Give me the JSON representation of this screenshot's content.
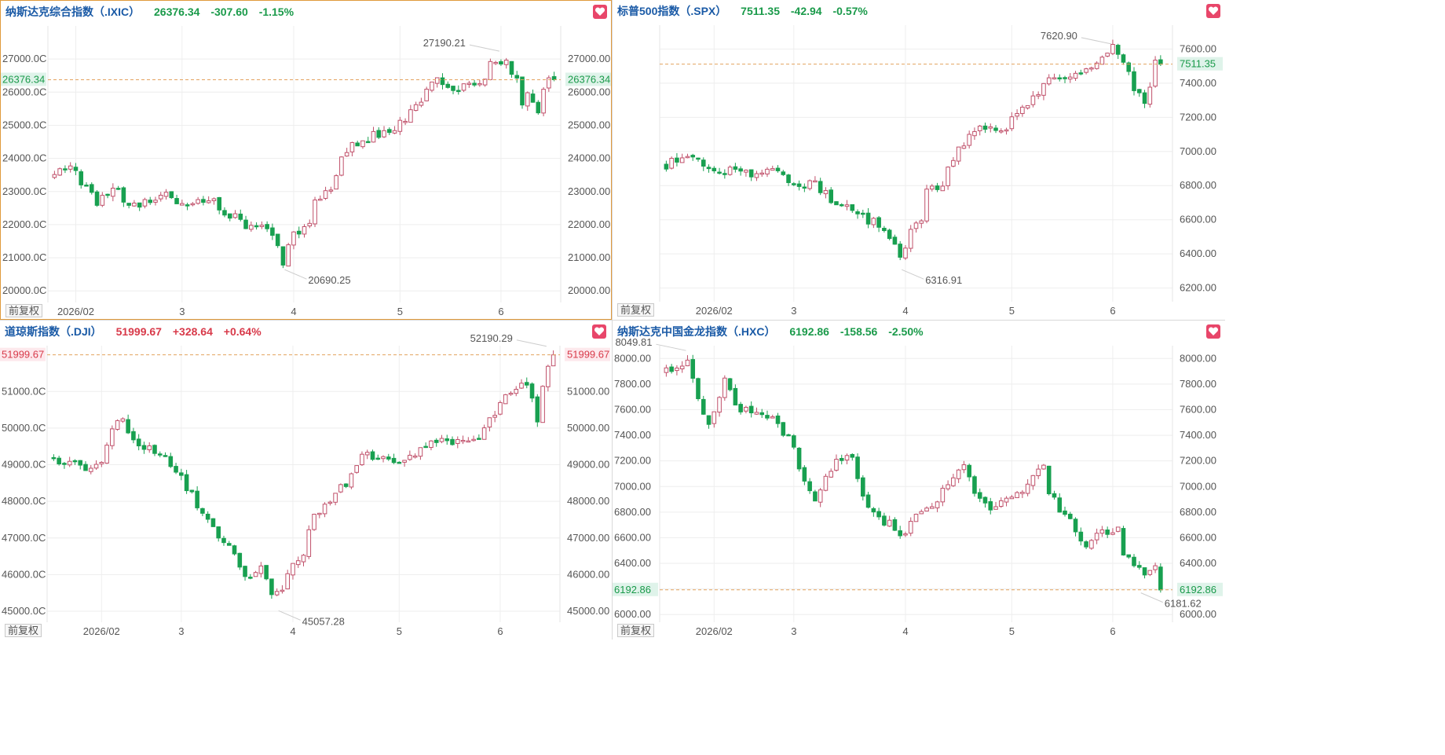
{
  "toolbar": {
    "adj_label": "前复权"
  },
  "colors": {
    "up": "#c0506a",
    "down": "#18a050",
    "last_line": "#e3a25e",
    "grid": "#eeeeee",
    "name": "#1a5aa6",
    "up_text": "#d83a4a",
    "down_text": "#1a9a4a"
  },
  "chart_data": [
    {
      "type": "candlestick",
      "name": "纳斯达克综合指数（.IXIC）",
      "last": "26376.34",
      "change": "-307.60",
      "pct": "-1.15%",
      "direction": "down",
      "yticks": [
        20000,
        21000,
        22000,
        23000,
        24000,
        25000,
        26000,
        27000
      ],
      "ytick_labels_left": [
        "20000.0C",
        "21000.0C",
        "22000.0C",
        "23000.0C",
        "24000.0C",
        "25000.0C",
        "26000.0C",
        "27000.0C"
      ],
      "ytick_labels_right": [
        "20000.00",
        "21000.00",
        "22000.00",
        "23000.00",
        "24000.00",
        "25000.00",
        "26000.00",
        "27000.00"
      ],
      "ylim": [
        19650,
        28000
      ],
      "last_label": "26376.34",
      "xticks": [
        {
          "label": "2026/02",
          "i": 4
        },
        {
          "label": "3",
          "i": 24
        },
        {
          "label": "4",
          "i": 45
        },
        {
          "label": "5",
          "i": 65
        },
        {
          "label": "6",
          "i": 84
        }
      ],
      "annotations": [
        {
          "text": "27190.21",
          "type": "high",
          "i": 84
        },
        {
          "text": "20690.25",
          "type": "low",
          "i": 43
        }
      ],
      "anchors": [
        [
          0,
          23450
        ],
        [
          3,
          23900
        ],
        [
          5,
          23250
        ],
        [
          8,
          22700
        ],
        [
          11,
          23150
        ],
        [
          14,
          22600
        ],
        [
          17,
          22700
        ],
        [
          20,
          22950
        ],
        [
          23,
          22600
        ],
        [
          27,
          22700
        ],
        [
          30,
          22650
        ],
        [
          33,
          22300
        ],
        [
          36,
          21950
        ],
        [
          40,
          21900
        ],
        [
          43,
          20880
        ],
        [
          45,
          21650
        ],
        [
          48,
          21950
        ],
        [
          49,
          22700
        ],
        [
          52,
          23150
        ],
        [
          55,
          24300
        ],
        [
          58,
          24550
        ],
        [
          61,
          24750
        ],
        [
          64,
          24850
        ],
        [
          67,
          25350
        ],
        [
          70,
          25950
        ],
        [
          72,
          26550
        ],
        [
          74,
          26200
        ],
        [
          76,
          26050
        ],
        [
          78,
          26400
        ],
        [
          80,
          26250
        ],
        [
          82,
          26800
        ],
        [
          85,
          27050
        ],
        [
          87,
          26300
        ],
        [
          88,
          25500
        ],
        [
          89,
          26000
        ],
        [
          91,
          25400
        ],
        [
          92,
          26100
        ],
        [
          93,
          26550
        ],
        [
          94,
          26376
        ]
      ]
    },
    {
      "type": "candlestick",
      "name": "标普500指数（.SPX）",
      "last": "7511.35",
      "change": "-42.94",
      "pct": "-0.57%",
      "direction": "down",
      "yticks": [
        6200,
        6400,
        6600,
        6800,
        7000,
        7200,
        7400,
        7600
      ],
      "ytick_labels_left": [],
      "ytick_labels_right": [
        "6200.00",
        "6400.00",
        "6600.00",
        "6800.00",
        "7000.00",
        "7200.00",
        "7400.00",
        "7600.00"
      ],
      "ylim": [
        6120,
        7740
      ],
      "last_label": "7511.35",
      "xticks": [
        {
          "label": "2026/02",
          "i": 9
        },
        {
          "label": "3",
          "i": 24
        },
        {
          "label": "4",
          "i": 45
        },
        {
          "label": "5",
          "i": 65
        },
        {
          "label": "6",
          "i": 84
        }
      ],
      "annotations": [
        {
          "text": "7620.90",
          "type": "high",
          "i": 84
        },
        {
          "text": "6316.91",
          "type": "low",
          "i": 44
        }
      ],
      "anchors": [
        [
          0,
          6920
        ],
        [
          4,
          6980
        ],
        [
          7,
          6940
        ],
        [
          10,
          6860
        ],
        [
          13,
          6900
        ],
        [
          16,
          6870
        ],
        [
          19,
          6890
        ],
        [
          22,
          6860
        ],
        [
          25,
          6810
        ],
        [
          28,
          6800
        ],
        [
          31,
          6720
        ],
        [
          34,
          6700
        ],
        [
          37,
          6620
        ],
        [
          40,
          6560
        ],
        [
          42,
          6500
        ],
        [
          44,
          6360
        ],
        [
          46,
          6560
        ],
        [
          48,
          6600
        ],
        [
          49,
          6770
        ],
        [
          52,
          6820
        ],
        [
          55,
          7020
        ],
        [
          58,
          7120
        ],
        [
          61,
          7130
        ],
        [
          64,
          7150
        ],
        [
          67,
          7270
        ],
        [
          70,
          7350
        ],
        [
          72,
          7410
        ],
        [
          74,
          7400
        ],
        [
          76,
          7440
        ],
        [
          78,
          7470
        ],
        [
          80,
          7500
        ],
        [
          82,
          7560
        ],
        [
          84,
          7600
        ],
        [
          86,
          7530
        ],
        [
          87,
          7450
        ],
        [
          88,
          7360
        ],
        [
          90,
          7280
        ],
        [
          91,
          7400
        ],
        [
          92,
          7560
        ],
        [
          93,
          7511
        ]
      ]
    },
    {
      "type": "candlestick",
      "name": "道琼斯指数（.DJI）",
      "last": "51999.67",
      "change": "+328.64",
      "pct": "+0.64%",
      "direction": "up",
      "yticks": [
        45000,
        46000,
        47000,
        48000,
        49000,
        50000,
        51000
      ],
      "ytick_labels_left": [
        "45000.0C",
        "46000.0C",
        "47000.0C",
        "48000.0C",
        "49000.0C",
        "50000.0C",
        "51000.0C"
      ],
      "ytick_labels_right": [
        "45000.00",
        "46000.00",
        "47000.00",
        "48000.00",
        "49000.00",
        "50000.00",
        "51000.00"
      ],
      "ylim": [
        44700,
        52250
      ],
      "last_label": "51999.67",
      "xticks": [
        {
          "label": "2026/02",
          "i": 9
        },
        {
          "label": "3",
          "i": 24
        },
        {
          "label": "4",
          "i": 45
        },
        {
          "label": "5",
          "i": 65
        },
        {
          "label": "6",
          "i": 84
        }
      ],
      "annotations": [
        {
          "text": "52190.29",
          "type": "high",
          "i": 93
        },
        {
          "text": "45057.28",
          "type": "low",
          "i": 42
        }
      ],
      "anchors": [
        [
          0,
          49200
        ],
        [
          3,
          49000
        ],
        [
          6,
          48900
        ],
        [
          9,
          49100
        ],
        [
          11,
          50000
        ],
        [
          13,
          50200
        ],
        [
          15,
          49600
        ],
        [
          18,
          49500
        ],
        [
          21,
          49200
        ],
        [
          24,
          48600
        ],
        [
          27,
          47900
        ],
        [
          30,
          47200
        ],
        [
          33,
          46900
        ],
        [
          35,
          46200
        ],
        [
          37,
          45800
        ],
        [
          39,
          46300
        ],
        [
          41,
          45500
        ],
        [
          43,
          45500
        ],
        [
          45,
          46400
        ],
        [
          47,
          46600
        ],
        [
          49,
          47600
        ],
        [
          52,
          48100
        ],
        [
          55,
          48500
        ],
        [
          58,
          49300
        ],
        [
          61,
          49200
        ],
        [
          64,
          49000
        ],
        [
          67,
          49200
        ],
        [
          70,
          49500
        ],
        [
          73,
          49600
        ],
        [
          76,
          49700
        ],
        [
          79,
          49600
        ],
        [
          81,
          50000
        ],
        [
          83,
          50400
        ],
        [
          85,
          50800
        ],
        [
          87,
          51000
        ],
        [
          89,
          51200
        ],
        [
          90,
          50800
        ],
        [
          91,
          50100
        ],
        [
          92,
          51100
        ],
        [
          93,
          51670
        ],
        [
          94,
          51999
        ]
      ]
    },
    {
      "type": "candlestick",
      "name": "纳斯达克中国金龙指数（.HXC）",
      "last": "6192.86",
      "change": "-158.56",
      "pct": "-2.50%",
      "direction": "down",
      "yticks": [
        6000,
        6200,
        6400,
        6600,
        6800,
        7000,
        7200,
        7400,
        7600,
        7800,
        8000
      ],
      "ytick_labels_left": [
        "6000.00",
        "6200.00",
        "6400.00",
        "6600.00",
        "6800.00",
        "7000.00",
        "7200.00",
        "7400.00",
        "7600.00",
        "7800.00",
        "8000.00"
      ],
      "ytick_labels_right": [
        "6000.00",
        "6200.00",
        "6400.00",
        "6600.00",
        "6800.00",
        "7000.00",
        "7200.00",
        "7400.00",
        "7600.00",
        "7800.00",
        "8000.00"
      ],
      "ylim": [
        5940,
        8100
      ],
      "last_label": "6192.86",
      "xticks": [
        {
          "label": "2026/02",
          "i": 9
        },
        {
          "label": "3",
          "i": 24
        },
        {
          "label": "4",
          "i": 45
        },
        {
          "label": "5",
          "i": 65
        },
        {
          "label": "6",
          "i": 84
        }
      ],
      "annotations": [
        {
          "text": "8049.81",
          "type": "high",
          "i": 4
        },
        {
          "text": "6181.62",
          "type": "low",
          "i": 89
        }
      ],
      "anchors": [
        [
          0,
          7900
        ],
        [
          4,
          7980
        ],
        [
          6,
          7650
        ],
        [
          8,
          7480
        ],
        [
          11,
          7850
        ],
        [
          13,
          7600
        ],
        [
          16,
          7580
        ],
        [
          19,
          7520
        ],
        [
          21,
          7500
        ],
        [
          24,
          7300
        ],
        [
          26,
          7020
        ],
        [
          28,
          6920
        ],
        [
          30,
          7050
        ],
        [
          32,
          7250
        ],
        [
          35,
          7200
        ],
        [
          37,
          6950
        ],
        [
          39,
          6800
        ],
        [
          42,
          6700
        ],
        [
          44,
          6600
        ],
        [
          46,
          6700
        ],
        [
          48,
          6800
        ],
        [
          51,
          6850
        ],
        [
          53,
          7050
        ],
        [
          56,
          7150
        ],
        [
          58,
          6950
        ],
        [
          60,
          6850
        ],
        [
          62,
          6850
        ],
        [
          64,
          6920
        ],
        [
          66,
          6950
        ],
        [
          69,
          7050
        ],
        [
          71,
          7200
        ],
        [
          72,
          6950
        ],
        [
          74,
          6820
        ],
        [
          76,
          6750
        ],
        [
          78,
          6550
        ],
        [
          80,
          6550
        ],
        [
          82,
          6680
        ],
        [
          84,
          6620
        ],
        [
          85,
          6700
        ],
        [
          86,
          6500
        ],
        [
          88,
          6380
        ],
        [
          90,
          6300
        ],
        [
          92,
          6400
        ],
        [
          93,
          6192
        ]
      ]
    }
  ]
}
